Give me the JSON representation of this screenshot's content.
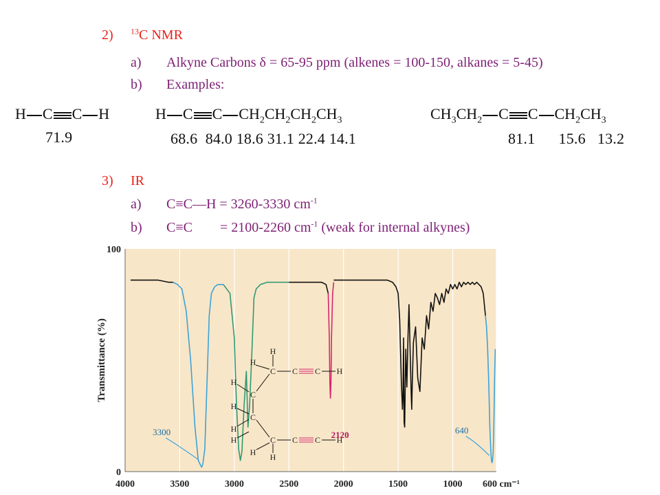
{
  "section_c13": {
    "number": "2)",
    "title_sup": "13",
    "title": "C NMR",
    "a_label": "a)",
    "a_text": "Alkyne Carbons δ = 65-95 ppm (alkenes = 100-150, alkanes = 5-45)",
    "b_label": "b)",
    "b_text": "Examples:"
  },
  "examples": [
    {
      "shifts": "71.9"
    },
    {
      "shifts": "68.6  84.0 18.6 31.1 22.4 14.1"
    },
    {
      "shifts": "81.1      15.6   13.2"
    }
  ],
  "section_ir": {
    "number": "3)",
    "title": "IR",
    "a_label": "a)",
    "a_text": "C≡C—H = 3260-3330 cm",
    "a_sup": "-1",
    "b_label": "b)",
    "b_text1": "C≡C",
    "b_text2": "= 2100-2260 cm",
    "b_sup": "-1",
    "b_text3": " (weak for internal alkynes)"
  },
  "chart_data": {
    "type": "line",
    "title": "",
    "xlabel": "cm⁻¹",
    "ylabel": "Transmittance (%)",
    "xlim": [
      4000,
      600
    ],
    "ylim": [
      0,
      100
    ],
    "x_tick_labels": [
      "4000",
      "3500",
      "3000",
      "2500",
      "2000",
      "1500",
      "1000",
      "600 cm⁻¹"
    ],
    "y_tick_labels": [
      "100",
      "0"
    ],
    "annotations": [
      {
        "text": "3300",
        "x": 3300
      },
      {
        "text": "2120",
        "x": 2120
      },
      {
        "text": "640",
        "x": 640
      }
    ],
    "colors": {
      "background": "#f8e6c8",
      "black": "#111111",
      "blue": "#3ba3d8",
      "green": "#2f9a73",
      "magenta": "#d6246e"
    },
    "series": [
      {
        "color": "black",
        "x": [
          3950,
          3800,
          3700,
          3600,
          3560
        ],
        "y": [
          86,
          86,
          86,
          85,
          85
        ]
      },
      {
        "color": "blue",
        "x": [
          3560,
          3520,
          3480,
          3440,
          3400,
          3360,
          3330,
          3310,
          3300,
          3290,
          3270,
          3250,
          3230,
          3210,
          3180,
          3150,
          3100
        ],
        "y": [
          85,
          84,
          82,
          72,
          50,
          20,
          5,
          3,
          2,
          3,
          10,
          40,
          70,
          80,
          83,
          84,
          84
        ]
      },
      {
        "color": "green",
        "x": [
          3100,
          3040,
          3000,
          2980,
          2960,
          2945,
          2930,
          2910,
          2890,
          2875,
          2860,
          2840,
          2820,
          2800,
          2760,
          2700,
          2600,
          2500
        ],
        "y": [
          84,
          80,
          60,
          30,
          10,
          5,
          9,
          30,
          45,
          20,
          30,
          52,
          78,
          82,
          84,
          85,
          85,
          85
        ]
      },
      {
        "color": "black",
        "x": [
          2500,
          2400,
          2300,
          2200,
          2160,
          2140
        ],
        "y": [
          85,
          85,
          85,
          85,
          84,
          80
        ]
      },
      {
        "color": "magenta",
        "x": [
          2140,
          2130,
          2125,
          2120,
          2115,
          2110,
          2100,
          2090
        ],
        "y": [
          80,
          60,
          40,
          33,
          40,
          60,
          80,
          85
        ]
      },
      {
        "color": "black",
        "x": [
          2090,
          2000,
          1900,
          1800,
          1700,
          1600,
          1550,
          1520,
          1500,
          1485,
          1470,
          1460,
          1455,
          1450,
          1445,
          1440,
          1430,
          1420,
          1410,
          1400,
          1390,
          1380,
          1375,
          1370,
          1360,
          1340,
          1320,
          1300,
          1280,
          1260,
          1240,
          1220,
          1200,
          1180,
          1160,
          1140,
          1120,
          1100,
          1080,
          1060,
          1040,
          1020,
          1000,
          980,
          960,
          940,
          920,
          900,
          880,
          860,
          840,
          820,
          800,
          780,
          760,
          740,
          720,
          700
        ],
        "y": [
          86,
          86,
          86,
          86,
          86,
          86,
          85,
          83,
          80,
          68,
          40,
          28,
          35,
          60,
          22,
          20,
          55,
          38,
          60,
          75,
          55,
          35,
          28,
          40,
          58,
          65,
          42,
          36,
          60,
          55,
          70,
          64,
          76,
          72,
          80,
          78,
          75,
          80,
          76,
          82,
          80,
          84,
          82,
          84,
          82,
          85,
          83,
          85,
          84,
          85,
          84,
          85,
          84,
          85,
          84,
          83,
          80,
          70
        ]
      },
      {
        "color": "blue",
        "x": [
          700,
          690,
          680,
          670,
          660,
          650,
          645,
          640,
          635,
          630,
          625,
          620,
          615,
          610
        ],
        "y": [
          70,
          65,
          55,
          40,
          20,
          8,
          5,
          4,
          5,
          8,
          15,
          30,
          45,
          55
        ]
      }
    ]
  }
}
